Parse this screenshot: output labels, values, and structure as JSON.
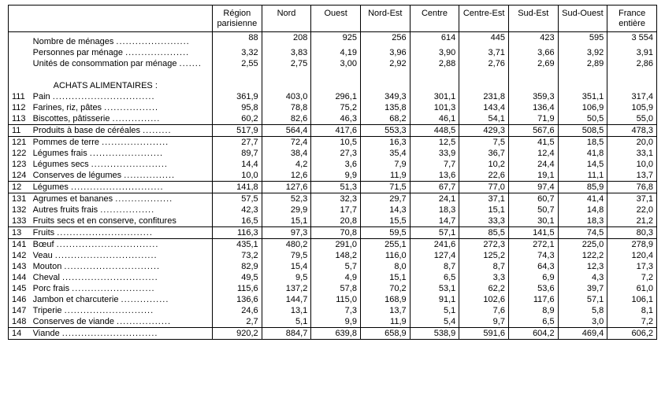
{
  "columns": [
    "Région\nparisienne",
    "Nord",
    "Ouest",
    "Nord-Est",
    "Centre",
    "Centre-Est",
    "Sud-Est",
    "Sud-Ouest",
    "France\nentière"
  ],
  "header_rows": [
    {
      "label": "Nombre de ménages",
      "vals": [
        "88",
        "208",
        "925",
        "256",
        "614",
        "445",
        "423",
        "595",
        "3 554"
      ]
    },
    {
      "label": "Personnes par ménage",
      "vals": [
        "3,32",
        "3,83",
        "4,19",
        "3,96",
        "3,90",
        "3,71",
        "3,66",
        "3,92",
        "3,91"
      ]
    },
    {
      "label": "Unités de consommation par ménage",
      "vals": [
        "2,55",
        "2,75",
        "3,00",
        "2,92",
        "2,88",
        "2,76",
        "2,69",
        "2,89",
        "2,86"
      ]
    }
  ],
  "section_heading": "ACHATS ALIMENTAIRES :",
  "groups": [
    {
      "rows": [
        {
          "code": "111",
          "label": "Pain",
          "vals": [
            "361,9",
            "403,0",
            "296,1",
            "349,3",
            "301,1",
            "231,8",
            "359,3",
            "351,1",
            "317,4"
          ]
        },
        {
          "code": "112",
          "label": "Farines, riz, pâtes",
          "vals": [
            "95,8",
            "78,8",
            "75,2",
            "135,8",
            "101,3",
            "143,4",
            "136,4",
            "106,9",
            "105,9"
          ]
        },
        {
          "code": "113",
          "label": "Biscottes, pâtisserie",
          "vals": [
            "60,2",
            "82,6",
            "46,3",
            "68,2",
            "46,1",
            "54,1",
            "71,9",
            "50,5",
            "55,0"
          ]
        }
      ],
      "subtotal": {
        "code": "11",
        "label": "Produits à base de céréales",
        "vals": [
          "517,9",
          "564,4",
          "417,6",
          "553,3",
          "448,5",
          "429,3",
          "567,6",
          "508,5",
          "478,3"
        ]
      }
    },
    {
      "rows": [
        {
          "code": "121",
          "label": "Pommes de terre",
          "vals": [
            "27,7",
            "72,4",
            "10,5",
            "16,3",
            "12,5",
            "7,5",
            "41,5",
            "18,5",
            "20,0"
          ]
        },
        {
          "code": "122",
          "label": "Légumes frais",
          "vals": [
            "89,7",
            "38,4",
            "27,3",
            "35,4",
            "33,9",
            "36,7",
            "12,4",
            "41,8",
            "33,1"
          ]
        },
        {
          "code": "123",
          "label": "Légumes secs",
          "vals": [
            "14,4",
            "4,2",
            "3,6",
            "7,9",
            "7,7",
            "10,2",
            "24,4",
            "14,5",
            "10,0"
          ]
        },
        {
          "code": "124",
          "label": "Conserves de légumes",
          "vals": [
            "10,0",
            "12,6",
            "9,9",
            "11,9",
            "13,6",
            "22,6",
            "19,1",
            "11,1",
            "13,7"
          ]
        }
      ],
      "subtotal": {
        "code": "12",
        "label": "Légumes",
        "vals": [
          "141,8",
          "127,6",
          "51,3",
          "71,5",
          "67,7",
          "77,0",
          "97,4",
          "85,9",
          "76,8"
        ]
      }
    },
    {
      "rows": [
        {
          "code": "131",
          "label": "Agrumes et bananes",
          "vals": [
            "57,5",
            "52,3",
            "32,3",
            "29,7",
            "24,1",
            "37,1",
            "60,7",
            "41,4",
            "37,1"
          ]
        },
        {
          "code": "132",
          "label": "Autres fruits frais",
          "vals": [
            "42,3",
            "29,9",
            "17,7",
            "14,3",
            "18,3",
            "15,1",
            "50,7",
            "14,8",
            "22,0"
          ]
        },
        {
          "code": "133",
          "label": "Fruits secs et en conserve, confitures",
          "vals": [
            "16,5",
            "15,1",
            "20,8",
            "15,5",
            "14,7",
            "33,3",
            "30,1",
            "18,3",
            "21,2"
          ]
        }
      ],
      "subtotal": {
        "code": "13",
        "label": "Fruits",
        "vals": [
          "116,3",
          "97,3",
          "70,8",
          "59,5",
          "57,1",
          "85,5",
          "141,5",
          "74,5",
          "80,3"
        ]
      }
    },
    {
      "rows": [
        {
          "code": "141",
          "label": "Bœuf",
          "vals": [
            "435,1",
            "480,2",
            "291,0",
            "255,1",
            "241,6",
            "272,3",
            "272,1",
            "225,0",
            "278,9"
          ]
        },
        {
          "code": "142",
          "label": "Veau",
          "vals": [
            "73,2",
            "79,5",
            "148,2",
            "116,0",
            "127,4",
            "125,2",
            "74,3",
            "122,2",
            "120,4"
          ]
        },
        {
          "code": "143",
          "label": "Mouton",
          "vals": [
            "82,9",
            "15,4",
            "5,7",
            "8,0",
            "8,7",
            "8,7",
            "64,3",
            "12,3",
            "17,3"
          ]
        },
        {
          "code": "144",
          "label": "Cheval",
          "vals": [
            "49,5",
            "9,5",
            "4,9",
            "15,1",
            "6,5",
            "3,3",
            "6,9",
            "4,3",
            "7,2"
          ]
        },
        {
          "code": "145",
          "label": "Porc frais",
          "vals": [
            "115,6",
            "137,2",
            "57,8",
            "70,2",
            "53,1",
            "62,2",
            "53,6",
            "39,7",
            "61,0"
          ]
        },
        {
          "code": "146",
          "label": "Jambon et charcuterie",
          "vals": [
            "136,6",
            "144,7",
            "115,0",
            "168,9",
            "91,1",
            "102,6",
            "117,6",
            "57,1",
            "106,1"
          ]
        },
        {
          "code": "147",
          "label": "Triperie",
          "vals": [
            "24,6",
            "13,1",
            "7,3",
            "13,7",
            "5,1",
            "7,6",
            "8,9",
            "5,8",
            "8,1"
          ]
        },
        {
          "code": "148",
          "label": "Conserves de viande",
          "vals": [
            "2,7",
            "5,1",
            "9,9",
            "11,9",
            "5,4",
            "9,7",
            "6,5",
            "3,0",
            "7,2"
          ]
        }
      ],
      "subtotal": {
        "code": "14",
        "label": "Viande",
        "vals": [
          "920,2",
          "884,7",
          "639,8",
          "658,9",
          "538,9",
          "591,6",
          "604,2",
          "469,4",
          "606,2"
        ]
      }
    }
  ]
}
